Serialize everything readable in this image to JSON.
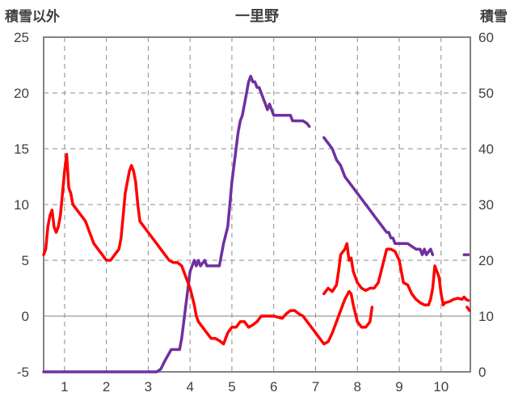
{
  "chart_data": {
    "type": "line",
    "title": "一里野",
    "y_left_label": "積雪以外",
    "y_right_label": "積雪",
    "x_ticks": [
      1,
      2,
      3,
      4,
      5,
      6,
      7,
      8,
      9,
      10
    ],
    "xlim": [
      0.5,
      10.7
    ],
    "y_left_lim": [
      -5,
      25
    ],
    "y_left_ticks": [
      -5,
      0,
      5,
      10,
      15,
      20,
      25
    ],
    "y_right_lim": [
      0,
      60
    ],
    "y_right_ticks": [
      0,
      10,
      20,
      30,
      40,
      50,
      60
    ],
    "grid": true,
    "colors": {
      "snow_depth": "#7030a0",
      "other": "#ff0000"
    },
    "series": [
      {
        "axis": "right",
        "color": "#7030a0",
        "segments": [
          [
            [
              0.5,
              0
            ],
            [
              1,
              0
            ],
            [
              2,
              0
            ],
            [
              3,
              0
            ],
            [
              3.2,
              0
            ],
            [
              3.3,
              0.5
            ],
            [
              3.4,
              2
            ],
            [
              3.55,
              4
            ],
            [
              3.75,
              4
            ],
            [
              3.8,
              6
            ],
            [
              3.9,
              12
            ],
            [
              4.0,
              18
            ],
            [
              4.1,
              20
            ],
            [
              4.15,
              19
            ],
            [
              4.2,
              20
            ],
            [
              4.25,
              19
            ],
            [
              4.35,
              20
            ],
            [
              4.4,
              19
            ],
            [
              4.5,
              19
            ],
            [
              4.6,
              19
            ],
            [
              4.7,
              19
            ],
            [
              4.75,
              21
            ],
            [
              4.8,
              23
            ],
            [
              4.9,
              26
            ],
            [
              4.95,
              30
            ],
            [
              5.0,
              34
            ],
            [
              5.05,
              37
            ],
            [
              5.1,
              40
            ],
            [
              5.15,
              43
            ],
            [
              5.2,
              45
            ],
            [
              5.25,
              46
            ],
            [
              5.3,
              48
            ],
            [
              5.35,
              50
            ],
            [
              5.4,
              52
            ],
            [
              5.45,
              53
            ],
            [
              5.5,
              52
            ],
            [
              5.55,
              52
            ],
            [
              5.6,
              51
            ],
            [
              5.65,
              51
            ],
            [
              5.7,
              50
            ],
            [
              5.75,
              49
            ],
            [
              5.8,
              48
            ],
            [
              5.85,
              47
            ],
            [
              5.9,
              48
            ],
            [
              5.95,
              47
            ],
            [
              6.0,
              46
            ],
            [
              6.1,
              46
            ],
            [
              6.2,
              46
            ],
            [
              6.3,
              46
            ],
            [
              6.4,
              46
            ],
            [
              6.45,
              45
            ],
            [
              6.5,
              45
            ],
            [
              6.6,
              45
            ],
            [
              6.7,
              45
            ],
            [
              6.8,
              44.5
            ],
            [
              6.85,
              44
            ]
          ],
          [
            [
              7.2,
              42
            ],
            [
              7.3,
              41
            ],
            [
              7.4,
              40
            ],
            [
              7.5,
              38
            ],
            [
              7.6,
              37
            ],
            [
              7.7,
              35
            ],
            [
              7.8,
              34
            ],
            [
              7.9,
              33
            ],
            [
              8.0,
              32
            ],
            [
              8.1,
              31
            ],
            [
              8.2,
              30
            ],
            [
              8.3,
              29
            ],
            [
              8.4,
              28
            ],
            [
              8.5,
              27
            ],
            [
              8.6,
              26
            ],
            [
              8.7,
              25
            ],
            [
              8.75,
              25
            ],
            [
              8.8,
              24
            ],
            [
              8.85,
              24
            ],
            [
              8.9,
              23
            ],
            [
              9.0,
              23
            ],
            [
              9.2,
              23
            ],
            [
              9.4,
              22
            ],
            [
              9.5,
              22
            ],
            [
              9.55,
              21
            ],
            [
              9.6,
              22
            ],
            [
              9.65,
              21
            ],
            [
              9.7,
              21.5
            ],
            [
              9.75,
              22
            ],
            [
              9.8,
              21
            ]
          ],
          [
            [
              10.55,
              21
            ],
            [
              10.65,
              21
            ]
          ]
        ]
      },
      {
        "axis": "left",
        "color": "#ff0000",
        "segments": [
          [
            [
              0.5,
              5.5
            ],
            [
              0.55,
              6
            ],
            [
              0.6,
              8
            ],
            [
              0.65,
              9
            ],
            [
              0.7,
              9.5
            ],
            [
              0.75,
              8
            ],
            [
              0.8,
              7.5
            ],
            [
              0.85,
              8
            ],
            [
              0.9,
              9
            ],
            [
              0.95,
              11
            ],
            [
              1.0,
              13
            ],
            [
              1.05,
              14.5
            ],
            [
              1.1,
              11.5
            ],
            [
              1.15,
              11
            ],
            [
              1.2,
              10
            ],
            [
              1.3,
              9.5
            ],
            [
              1.4,
              9
            ],
            [
              1.5,
              8.5
            ],
            [
              1.6,
              7.5
            ],
            [
              1.7,
              6.5
            ],
            [
              1.8,
              6
            ],
            [
              1.9,
              5.5
            ],
            [
              2.0,
              5
            ],
            [
              2.1,
              5
            ],
            [
              2.2,
              5.5
            ],
            [
              2.3,
              6
            ],
            [
              2.35,
              7
            ],
            [
              2.4,
              9
            ],
            [
              2.45,
              11
            ],
            [
              2.5,
              12
            ],
            [
              2.55,
              13
            ],
            [
              2.6,
              13.5
            ],
            [
              2.65,
              13
            ],
            [
              2.7,
              12
            ],
            [
              2.75,
              10
            ],
            [
              2.8,
              8.5
            ],
            [
              2.9,
              8
            ],
            [
              3.0,
              7.5
            ],
            [
              3.1,
              7
            ],
            [
              3.2,
              6.5
            ],
            [
              3.3,
              6
            ],
            [
              3.4,
              5.5
            ],
            [
              3.5,
              5
            ],
            [
              3.6,
              4.8
            ],
            [
              3.7,
              4.8
            ],
            [
              3.8,
              4.5
            ],
            [
              3.9,
              3.5
            ],
            [
              4.0,
              2.5
            ],
            [
              4.1,
              1
            ],
            [
              4.15,
              0
            ],
            [
              4.2,
              -0.5
            ],
            [
              4.3,
              -1
            ],
            [
              4.4,
              -1.5
            ],
            [
              4.5,
              -2
            ],
            [
              4.6,
              -2
            ],
            [
              4.7,
              -2.2
            ],
            [
              4.8,
              -2.5
            ],
            [
              4.9,
              -1.5
            ],
            [
              5.0,
              -1
            ],
            [
              5.1,
              -1
            ],
            [
              5.2,
              -0.5
            ],
            [
              5.3,
              -0.5
            ],
            [
              5.4,
              -1
            ],
            [
              5.5,
              -0.8
            ],
            [
              5.6,
              -0.5
            ],
            [
              5.7,
              0
            ],
            [
              5.8,
              0
            ],
            [
              6.0,
              0
            ],
            [
              6.2,
              -0.2
            ],
            [
              6.3,
              0.2
            ],
            [
              6.4,
              0.5
            ],
            [
              6.5,
              0.5
            ],
            [
              6.6,
              0.2
            ],
            [
              6.7,
              0
            ],
            [
              6.8,
              -0.5
            ],
            [
              6.9,
              -1
            ],
            [
              7.0,
              -1.5
            ],
            [
              7.1,
              -2
            ],
            [
              7.2,
              -2.5
            ],
            [
              7.3,
              -2.3
            ],
            [
              7.4,
              -1.5
            ],
            [
              7.5,
              -0.5
            ],
            [
              7.6,
              0.5
            ],
            [
              7.7,
              1.5
            ],
            [
              7.8,
              2.2
            ],
            [
              7.85,
              2.0
            ],
            [
              7.9,
              1
            ],
            [
              8.0,
              -0.5
            ],
            [
              8.1,
              -1
            ],
            [
              8.2,
              -1
            ],
            [
              8.3,
              -0.5
            ],
            [
              8.35,
              0.8
            ]
          ],
          [
            [
              7.2,
              2
            ],
            [
              7.3,
              2.5
            ],
            [
              7.4,
              2.2
            ],
            [
              7.5,
              2.8
            ],
            [
              7.55,
              4
            ],
            [
              7.6,
              5.5
            ],
            [
              7.7,
              6
            ],
            [
              7.75,
              6.5
            ],
            [
              7.8,
              5
            ],
            [
              7.85,
              5.2
            ],
            [
              7.9,
              4
            ],
            [
              8.0,
              3
            ],
            [
              8.1,
              2.5
            ],
            [
              8.2,
              2.3
            ],
            [
              8.3,
              2.5
            ],
            [
              8.4,
              2.5
            ],
            [
              8.5,
              3
            ],
            [
              8.6,
              4.5
            ],
            [
              8.7,
              6
            ],
            [
              8.8,
              6
            ],
            [
              8.9,
              5.8
            ],
            [
              9.0,
              5
            ],
            [
              9.1,
              3
            ],
            [
              9.2,
              2.8
            ],
            [
              9.3,
              2
            ],
            [
              9.4,
              1.5
            ],
            [
              9.5,
              1.2
            ],
            [
              9.6,
              1
            ],
            [
              9.7,
              1
            ],
            [
              9.75,
              1.5
            ],
            [
              9.8,
              2.5
            ],
            [
              9.85,
              4.5
            ],
            [
              9.9,
              4
            ],
            [
              9.95,
              3.5
            ],
            [
              10.0,
              2
            ],
            [
              10.05,
              1
            ],
            [
              10.1,
              1.2
            ],
            [
              10.2,
              1.3
            ],
            [
              10.3,
              1.5
            ],
            [
              10.4,
              1.6
            ],
            [
              10.5,
              1.5
            ],
            [
              10.55,
              1.7
            ],
            [
              10.6,
              1.5
            ],
            [
              10.65,
              1.4
            ]
          ],
          [
            [
              10.62,
              0.8
            ],
            [
              10.68,
              0.5
            ]
          ]
        ]
      }
    ]
  }
}
